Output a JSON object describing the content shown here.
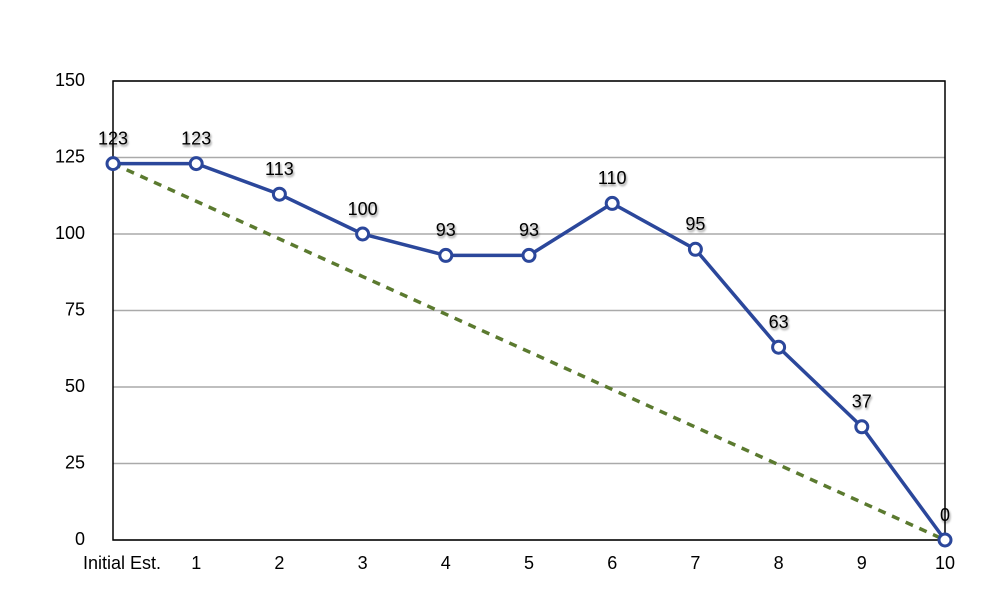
{
  "chart_data": {
    "type": "line",
    "categories": [
      "Initial Est.",
      "1",
      "2",
      "3",
      "4",
      "5",
      "6",
      "7",
      "8",
      "9",
      "10"
    ],
    "series": [
      {
        "color": "#2b479b",
        "values": [
          123,
          123,
          113,
          100,
          93,
          93,
          110,
          95,
          63,
          37,
          0
        ],
        "markers": true,
        "data_labels": true
      },
      {
        "color": "#5b7a2f",
        "values": [
          123,
          110.7,
          98.4,
          86.1,
          73.8,
          61.5,
          49.2,
          36.9,
          24.6,
          12.3,
          0
        ],
        "dashed": true
      }
    ],
    "ylim": [
      0,
      150
    ],
    "yticks": [
      0,
      25,
      50,
      75,
      100,
      125,
      150
    ],
    "grid": true
  }
}
